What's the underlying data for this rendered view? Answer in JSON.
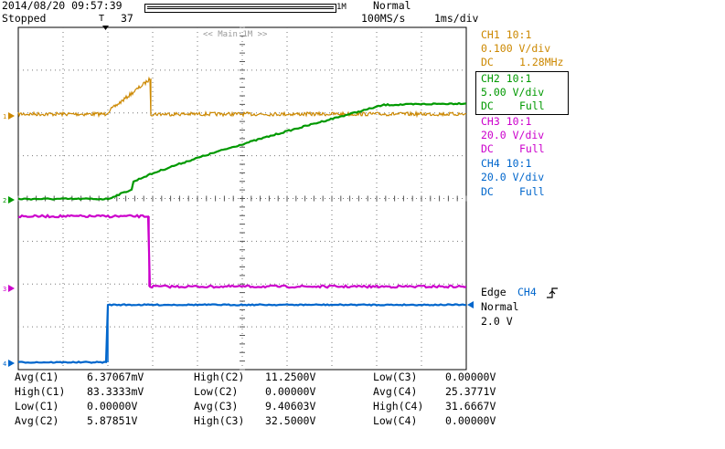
{
  "header": {
    "datetime": "2014/08/20 09:57:39",
    "state": "Stopped",
    "trigger_pos_marker": "T",
    "record_length": "37",
    "record_bar_label": "1M",
    "trigger_mode": "Normal",
    "sample_rate": "100MS/s",
    "timebase": "1ms/div",
    "main_label": "<< Main:1M >>"
  },
  "channels": [
    {
      "name": "CH1 10:1",
      "scale": "0.100 V/div",
      "coupling": "DC",
      "bandwidth": "1.28MHz",
      "color": "#cc8800",
      "marker": "1"
    },
    {
      "name": "CH2 10:1",
      "scale": "5.00 V/div",
      "coupling": "DC",
      "bandwidth": "Full",
      "color": "#009900",
      "marker": "2",
      "selected": true
    },
    {
      "name": "CH3 10:1",
      "scale": "20.0 V/div",
      "coupling": "DC",
      "bandwidth": "Full",
      "color": "#cc00cc",
      "marker": "3"
    },
    {
      "name": "CH4 10:1",
      "scale": "20.0 V/div",
      "coupling": "DC",
      "bandwidth": "Full",
      "color": "#0066cc",
      "marker": "4"
    }
  ],
  "trigger": {
    "type_label": "Edge",
    "source": "CH4",
    "mode": "Normal",
    "level": "2.0 V"
  },
  "measurements": [
    [
      "Avg(C1)",
      "6.37067mV",
      "High(C2)",
      "11.2500V",
      "Low(C3)",
      "0.00000V"
    ],
    [
      "High(C1)",
      "83.3333mV",
      "Low(C2)",
      "0.00000V",
      "Avg(C4)",
      "25.3771V"
    ],
    [
      "Low(C1)",
      "0.00000V",
      "Avg(C3)",
      "9.40603V",
      "High(C4)",
      "31.6667V"
    ],
    [
      "Avg(C2)",
      "5.87851V",
      "High(C3)",
      "32.5000V",
      "Low(C4)",
      "0.00000V"
    ]
  ]
}
